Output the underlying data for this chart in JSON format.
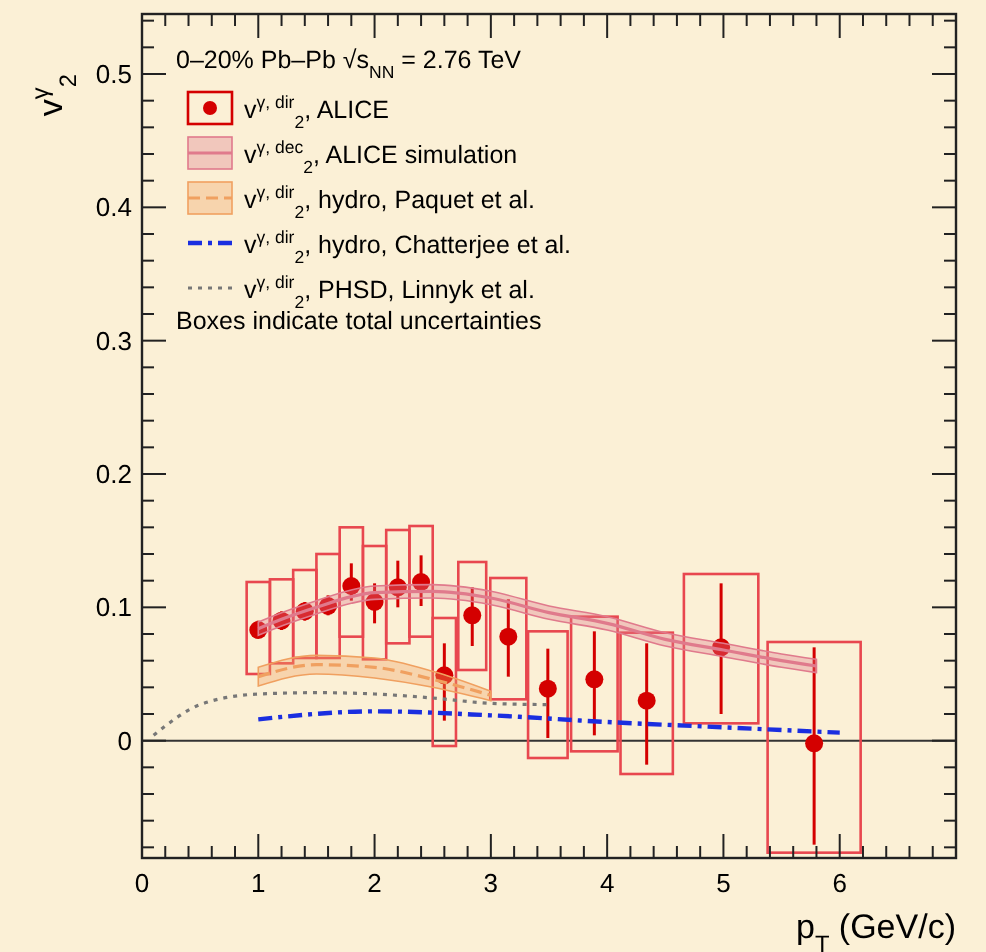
{
  "chart_data": {
    "type": "scatter",
    "xlabel": "p$_{T}$ (GeV/c)",
    "ylabel": "v$^{γ}$$_{2}$",
    "legend_title": "0–20% Pb–Pb √s$_{NN}$ = 2.76 TeV",
    "legend": "top left",
    "annotations": [
      "Boxes indicate total uncertainties"
    ],
    "xlim": [
      0,
      7
    ],
    "ylim": [
      -0.088,
      0.545
    ],
    "xticks": [
      0,
      {
        "value": 0.2,
        "label": null
      },
      {
        "value": 0.4,
        "label": null
      },
      {
        "value": 0.6,
        "label": null
      },
      {
        "value": 0.8,
        "label": null
      },
      1,
      {
        "value": 1.2,
        "label": null
      },
      {
        "value": 1.4,
        "label": null
      },
      {
        "value": 1.6,
        "label": null
      },
      {
        "value": 1.8,
        "label": null
      },
      2,
      {
        "value": 2.2,
        "label": null
      },
      {
        "value": 2.4,
        "label": null
      },
      {
        "value": 2.6,
        "label": null
      },
      {
        "value": 2.8,
        "label": null
      },
      3,
      {
        "value": 3.2,
        "label": null
      },
      {
        "value": 3.4,
        "label": null
      },
      {
        "value": 3.6,
        "label": null
      },
      {
        "value": 3.8,
        "label": null
      },
      4,
      {
        "value": 4.2,
        "label": null
      },
      {
        "value": 4.4,
        "label": null
      },
      {
        "value": 4.6,
        "label": null
      },
      {
        "value": 4.8,
        "label": null
      },
      5,
      {
        "value": 5.2,
        "label": null
      },
      {
        "value": 5.4,
        "label": null
      },
      {
        "value": 5.6,
        "label": null
      },
      {
        "value": 5.8,
        "label": null
      },
      6,
      {
        "value": 6.2,
        "label": null
      },
      {
        "value": 6.4,
        "label": null
      },
      {
        "value": 6.6,
        "label": null
      },
      {
        "value": 6.8,
        "label": null
      }
    ],
    "yticks": [
      {
        "value": -0.08,
        "label": null
      },
      {
        "value": -0.06,
        "label": null
      },
      {
        "value": -0.04,
        "label": null
      },
      {
        "value": -0.02,
        "label": null
      },
      0,
      {
        "value": 0.02,
        "label": null
      },
      {
        "value": 0.04,
        "label": null
      },
      {
        "value": 0.06,
        "label": null
      },
      {
        "value": 0.08,
        "label": null
      },
      0.1,
      {
        "value": 0.12,
        "label": null
      },
      {
        "value": 0.14,
        "label": null
      },
      {
        "value": 0.16,
        "label": null
      },
      {
        "value": 0.18,
        "label": null
      },
      0.2,
      {
        "value": 0.22,
        "label": null
      },
      {
        "value": 0.24,
        "label": null
      },
      {
        "value": 0.26,
        "label": null
      },
      {
        "value": 0.28,
        "label": null
      },
      0.3,
      {
        "value": 0.32,
        "label": null
      },
      {
        "value": 0.34,
        "label": null
      },
      {
        "value": 0.36,
        "label": null
      },
      {
        "value": 0.38,
        "label": null
      },
      0.4,
      {
        "value": 0.42,
        "label": null
      },
      {
        "value": 0.44,
        "label": null
      },
      {
        "value": 0.46,
        "label": null
      },
      {
        "value": 0.48,
        "label": null
      },
      0.5,
      {
        "value": 0.52,
        "label": null
      },
      {
        "value": 0.54,
        "label": null
      }
    ],
    "ref_lines": [
      {
        "axis": "y",
        "value": 0,
        "color": "#333333"
      }
    ],
    "series": [
      {
        "type": "bar",
        "color": "#e8474f",
        "x": [
          1,
          1.2,
          1.4,
          1.6,
          1.8,
          2,
          2.2,
          2.4,
          2.6,
          2.84,
          3.15,
          3.49,
          3.89,
          4.34,
          4.98,
          5.78
        ],
        "base": [
          0.05,
          0.058,
          0.062,
          0.062,
          0.078,
          0.061,
          0.073,
          0.078,
          -0.004,
          0.053,
          0.031,
          -0.013,
          -0.008,
          -0.025,
          0.013,
          -0.084
        ],
        "values": [
          0.069,
          0.063,
          0.066,
          0.078,
          0.082,
          0.085,
          0.085,
          0.083,
          0.096,
          0.081,
          0.091,
          0.095,
          0.101,
          0.106,
          0.112,
          0.158
        ]
      },
      {
        "name": "v$^{γ, dir}$$_{2}$, ALICE",
        "marker": "circle",
        "color": "#d40000",
        "x": [
          1,
          1.2,
          1.4,
          1.6,
          1.8,
          2,
          2.2,
          2.4,
          2.6,
          2.84,
          3.15,
          3.49,
          3.89,
          4.34,
          4.98,
          5.78
        ],
        "values": [
          0.083,
          0.09,
          0.097,
          0.101,
          0.116,
          0.104,
          0.115,
          0.119,
          0.049,
          0.094,
          0.078,
          0.039,
          0.046,
          0.03,
          0.07,
          -0.002
        ],
        "errors": [
          [
            0.077,
            0.09
          ],
          [
            0.083,
            0.097
          ],
          [
            0.09,
            0.104
          ],
          [
            0.094,
            0.109
          ],
          [
            0.105,
            0.133
          ],
          [
            0.088,
            0.118
          ],
          [
            0.1,
            0.135
          ],
          [
            0.101,
            0.139
          ],
          [
            0.015,
            0.073
          ],
          [
            0.071,
            0.115
          ],
          [
            0.048,
            0.106
          ],
          [
            0.002,
            0.069
          ],
          [
            0.004,
            0.082
          ],
          [
            -0.018,
            0.073
          ],
          [
            0.02,
            0.118
          ],
          [
            -0.078,
            0.07
          ]
        ]
      },
      {
        "name": "v$^{γ, dec}$$_{2}$, ALICE simulation",
        "type": "line",
        "color": "#e07a8c",
        "x": [
          1,
          1.2,
          1.5,
          1.8,
          2,
          2.5,
          3,
          3.5,
          4,
          4.5,
          5,
          5.5,
          5.8
        ],
        "values": [
          0.084,
          0.091,
          0.1,
          0.108,
          0.111,
          0.112,
          0.107,
          0.096,
          0.088,
          0.076,
          0.068,
          0.06,
          0.056
        ],
        "lower": [
          0.079,
          0.086,
          0.095,
          0.103,
          0.106,
          0.107,
          0.102,
          0.091,
          0.083,
          0.071,
          0.063,
          0.055,
          0.051
        ],
        "upper": [
          0.089,
          0.096,
          0.105,
          0.113,
          0.116,
          0.117,
          0.112,
          0.101,
          0.093,
          0.081,
          0.073,
          0.065,
          0.061
        ]
      },
      {
        "name": "v$^{γ, dir}$$_{2}$, hydro, Paquet et al.",
        "type": "line",
        "line_style": "dashed",
        "color": "#f0a060",
        "x": [
          1,
          1.5,
          2,
          2.5,
          3
        ],
        "values": [
          0.048,
          0.057,
          0.055,
          0.046,
          0.034
        ],
        "lower": [
          0.041,
          0.05,
          0.047,
          0.04,
          0.03
        ],
        "upper": [
          0.055,
          0.064,
          0.062,
          0.052,
          0.037
        ]
      },
      {
        "name": "v$^{γ, dir}$$_{2}$, hydro, Chatterjee et al.",
        "type": "line",
        "line_style": "dashdot",
        "color": "#1a2ee0",
        "x": [
          1,
          2,
          3,
          4,
          5,
          6
        ],
        "values": [
          0.016,
          0.022,
          0.019,
          0.014,
          0.01,
          0.006
        ]
      },
      {
        "name": "v$^{γ, dir}$$_{2}$, PHSD, Linnyk et al.",
        "type": "line",
        "line_style": "dotted",
        "color": "#777777",
        "x": [
          0.1,
          0.5,
          1,
          1.5,
          2,
          2.5,
          3,
          3.5
        ],
        "values": [
          0.004,
          0.027,
          0.035,
          0.036,
          0.035,
          0.032,
          0.028,
          0.027
        ]
      }
    ]
  }
}
